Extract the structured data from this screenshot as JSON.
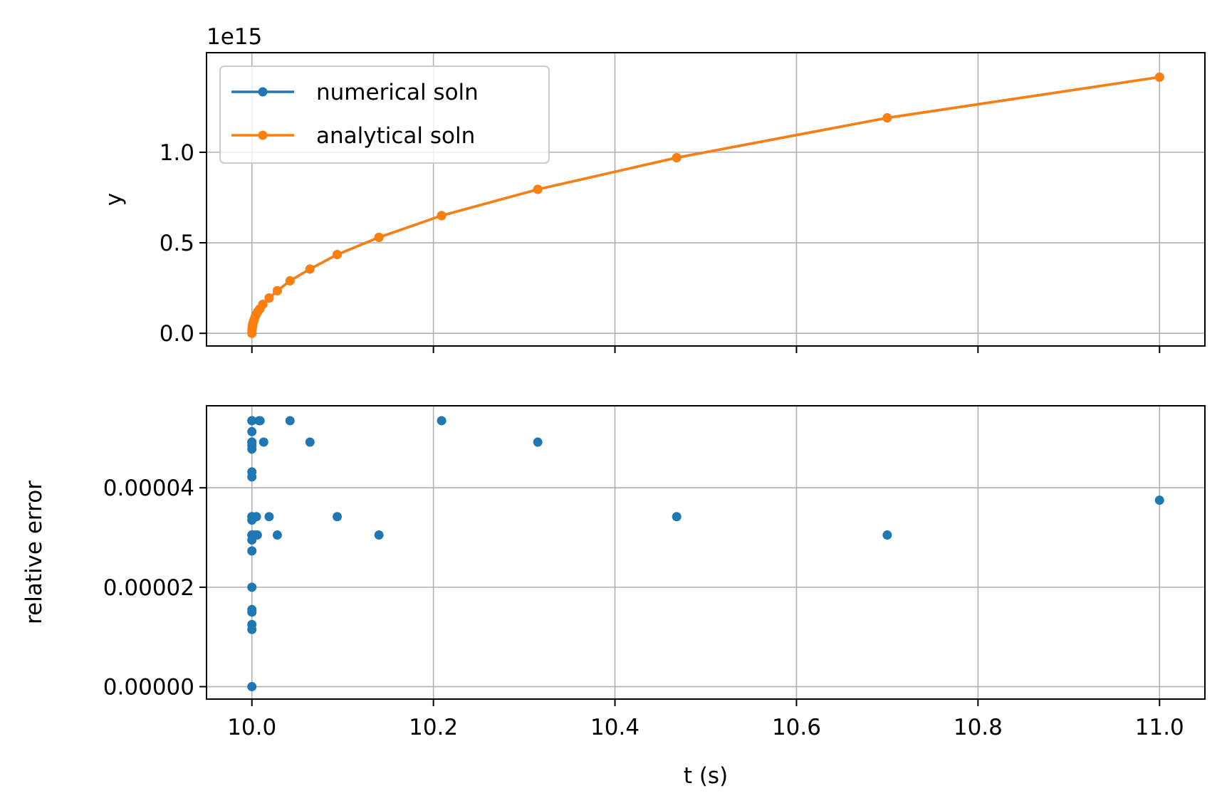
{
  "chart_data": [
    {
      "type": "line",
      "offset_text": "1e15",
      "ylabel": "y",
      "xlabel": "",
      "xlim": [
        9.95,
        11.05
      ],
      "ylim": [
        -0.07,
        1.55
      ],
      "x_ticks": [
        10.0,
        10.2,
        10.4,
        10.6,
        10.8,
        11.0
      ],
      "y_ticks": [
        0.0,
        0.5,
        1.0
      ],
      "y_tick_labels": [
        "0.0",
        "0.5",
        "1.0"
      ],
      "grid": true,
      "legend_position": "upper-left",
      "series": [
        {
          "name": "numerical soln",
          "color": "#1f77b4",
          "x": [
            10.0,
            10.0001,
            10.0003,
            10.0005,
            10.0008,
            10.0012,
            10.0018,
            10.0025,
            10.0035,
            10.0048,
            10.0065,
            10.0088,
            10.012,
            10.019,
            10.028,
            10.042,
            10.064,
            10.094,
            10.14,
            10.209,
            10.315,
            10.468,
            10.7,
            11.0
          ],
          "y": [
            0.0,
            0.015,
            0.025,
            0.035,
            0.045,
            0.055,
            0.065,
            0.075,
            0.09,
            0.105,
            0.12,
            0.135,
            0.16,
            0.195,
            0.235,
            0.29,
            0.355,
            0.435,
            0.53,
            0.65,
            0.795,
            0.97,
            1.19,
            1.415
          ]
        },
        {
          "name": "analytical soln",
          "color": "#ff7f0e",
          "x": [
            10.0,
            10.0001,
            10.0003,
            10.0005,
            10.0008,
            10.0012,
            10.0018,
            10.0025,
            10.0035,
            10.0048,
            10.0065,
            10.0088,
            10.012,
            10.019,
            10.028,
            10.042,
            10.064,
            10.094,
            10.14,
            10.209,
            10.315,
            10.468,
            10.7,
            11.0
          ],
          "y": [
            0.0,
            0.015,
            0.025,
            0.035,
            0.045,
            0.055,
            0.065,
            0.075,
            0.09,
            0.105,
            0.12,
            0.135,
            0.16,
            0.195,
            0.235,
            0.29,
            0.355,
            0.435,
            0.53,
            0.65,
            0.795,
            0.97,
            1.19,
            1.415
          ]
        }
      ]
    },
    {
      "type": "scatter",
      "xlabel": "t (s)",
      "ylabel": "relative error",
      "xlim": [
        9.95,
        11.05
      ],
      "ylim": [
        -2.5e-06,
        5.65e-05
      ],
      "x_ticks": [
        10.0,
        10.2,
        10.4,
        10.6,
        10.8,
        11.0
      ],
      "x_tick_labels": [
        "10.0",
        "10.2",
        "10.4",
        "10.6",
        "10.8",
        "11.0"
      ],
      "y_ticks": [
        0.0,
        2e-05,
        4e-05
      ],
      "y_tick_labels": [
        "0.00000",
        "0.00002",
        "0.00004"
      ],
      "grid": true,
      "series": [
        {
          "color": "#1f77b4",
          "x": [
            10.0,
            10.0,
            10.0,
            10.0,
            10.0,
            10.0,
            10.0,
            10.0,
            10.0,
            10.0,
            10.0,
            10.0,
            10.0,
            10.0,
            10.0,
            10.0,
            10.0,
            10.0,
            10.0,
            10.0,
            10.0,
            10.0,
            10.003,
            10.005,
            10.006,
            10.008,
            10.009,
            10.013,
            10.019,
            10.028,
            10.042,
            10.064,
            10.094,
            10.14,
            10.209,
            10.315,
            10.468,
            10.7,
            11.0
          ],
          "y": [
            0.0,
            1.15e-05,
            1.25e-05,
            1.5e-05,
            1.55e-05,
            2e-05,
            2.73e-05,
            2.95e-05,
            3.05e-05,
            3.35e-05,
            3.42e-05,
            4.22e-05,
            4.32e-05,
            4.78e-05,
            4.85e-05,
            4.92e-05,
            5.13e-05,
            5.35e-05,
            3.05e-05,
            3.42e-05,
            4.92e-05,
            5.35e-05,
            3.05e-05,
            3.42e-05,
            3.05e-05,
            5.35e-05,
            5.35e-05,
            4.92e-05,
            3.42e-05,
            3.05e-05,
            5.35e-05,
            4.92e-05,
            3.42e-05,
            3.05e-05,
            5.35e-05,
            4.92e-05,
            3.42e-05,
            3.05e-05,
            3.75e-05
          ]
        }
      ]
    }
  ]
}
